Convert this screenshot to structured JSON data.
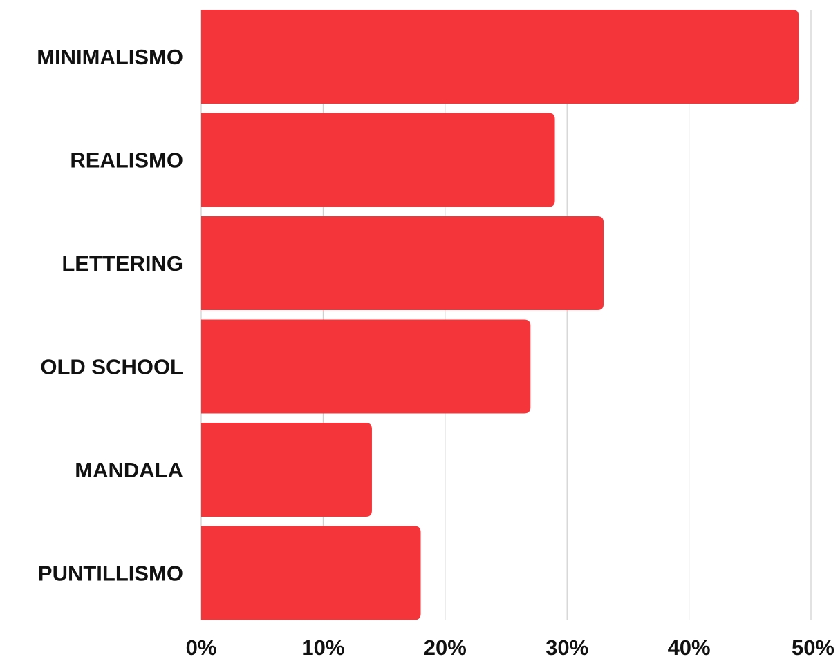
{
  "chart_data": {
    "type": "bar",
    "orientation": "horizontal",
    "categories": [
      "MINIMALISMO",
      "REALISMO",
      "LETTERING",
      "OLD SCHOOL",
      "MANDALA",
      "PUNTILLISMO"
    ],
    "values": [
      49,
      29,
      33,
      27,
      14,
      18
    ],
    "xlim": [
      0,
      50
    ],
    "x_ticks": [
      0,
      10,
      20,
      30,
      40,
      50
    ],
    "x_tick_labels": [
      "0%",
      "10%",
      "20%",
      "30%",
      "40%",
      "50%"
    ],
    "title": "",
    "xlabel": "",
    "ylabel": "",
    "grid": "vertical",
    "legend": "none",
    "bar_color": "#f4363a",
    "grid_color": "#cfcfcf"
  }
}
